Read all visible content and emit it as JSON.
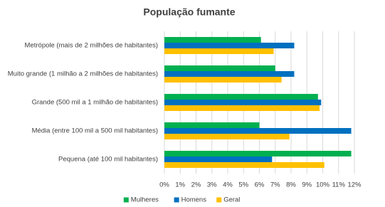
{
  "chart_data": {
    "type": "hbar",
    "title": "População fumante",
    "categories": [
      "Metrópole (mais de 2 milhões de habitantes)",
      "Muito grande (1 milhão a 2 milhões de habitantes)",
      "Grande (500 mil a 1 milhão de habitantes)",
      "Média (entre 100 mil a 500 mil habitantes)",
      "Pequena (até 100 mil habitantes)"
    ],
    "series": [
      {
        "name": "Mulheres",
        "color": "#00b050",
        "values": [
          6.1,
          7.0,
          9.7,
          6.0,
          11.8
        ]
      },
      {
        "name": "Homens",
        "color": "#0070c0",
        "values": [
          8.2,
          8.2,
          9.9,
          11.8,
          6.8
        ]
      },
      {
        "name": "Geral",
        "color": "#ffc000",
        "values": [
          6.9,
          7.4,
          9.8,
          7.9,
          10.1
        ]
      }
    ],
    "xlim": [
      0,
      12
    ],
    "xticks": [
      {
        "value": 0,
        "label": "0%"
      },
      {
        "value": 1,
        "label": "1%"
      },
      {
        "value": 2,
        "label": "2%"
      },
      {
        "value": 3,
        "label": "3%"
      },
      {
        "value": 4,
        "label": "4%"
      },
      {
        "value": 5,
        "label": "5%"
      },
      {
        "value": 6,
        "label": "6%"
      },
      {
        "value": 7,
        "label": "7%"
      },
      {
        "value": 8,
        "label": "8%"
      },
      {
        "value": 9,
        "label": "9%"
      },
      {
        "value": 10,
        "label": "10%"
      },
      {
        "value": 11,
        "label": "11%"
      },
      {
        "value": 12,
        "label": "12%"
      }
    ],
    "grid": true,
    "legend": "bottom"
  }
}
